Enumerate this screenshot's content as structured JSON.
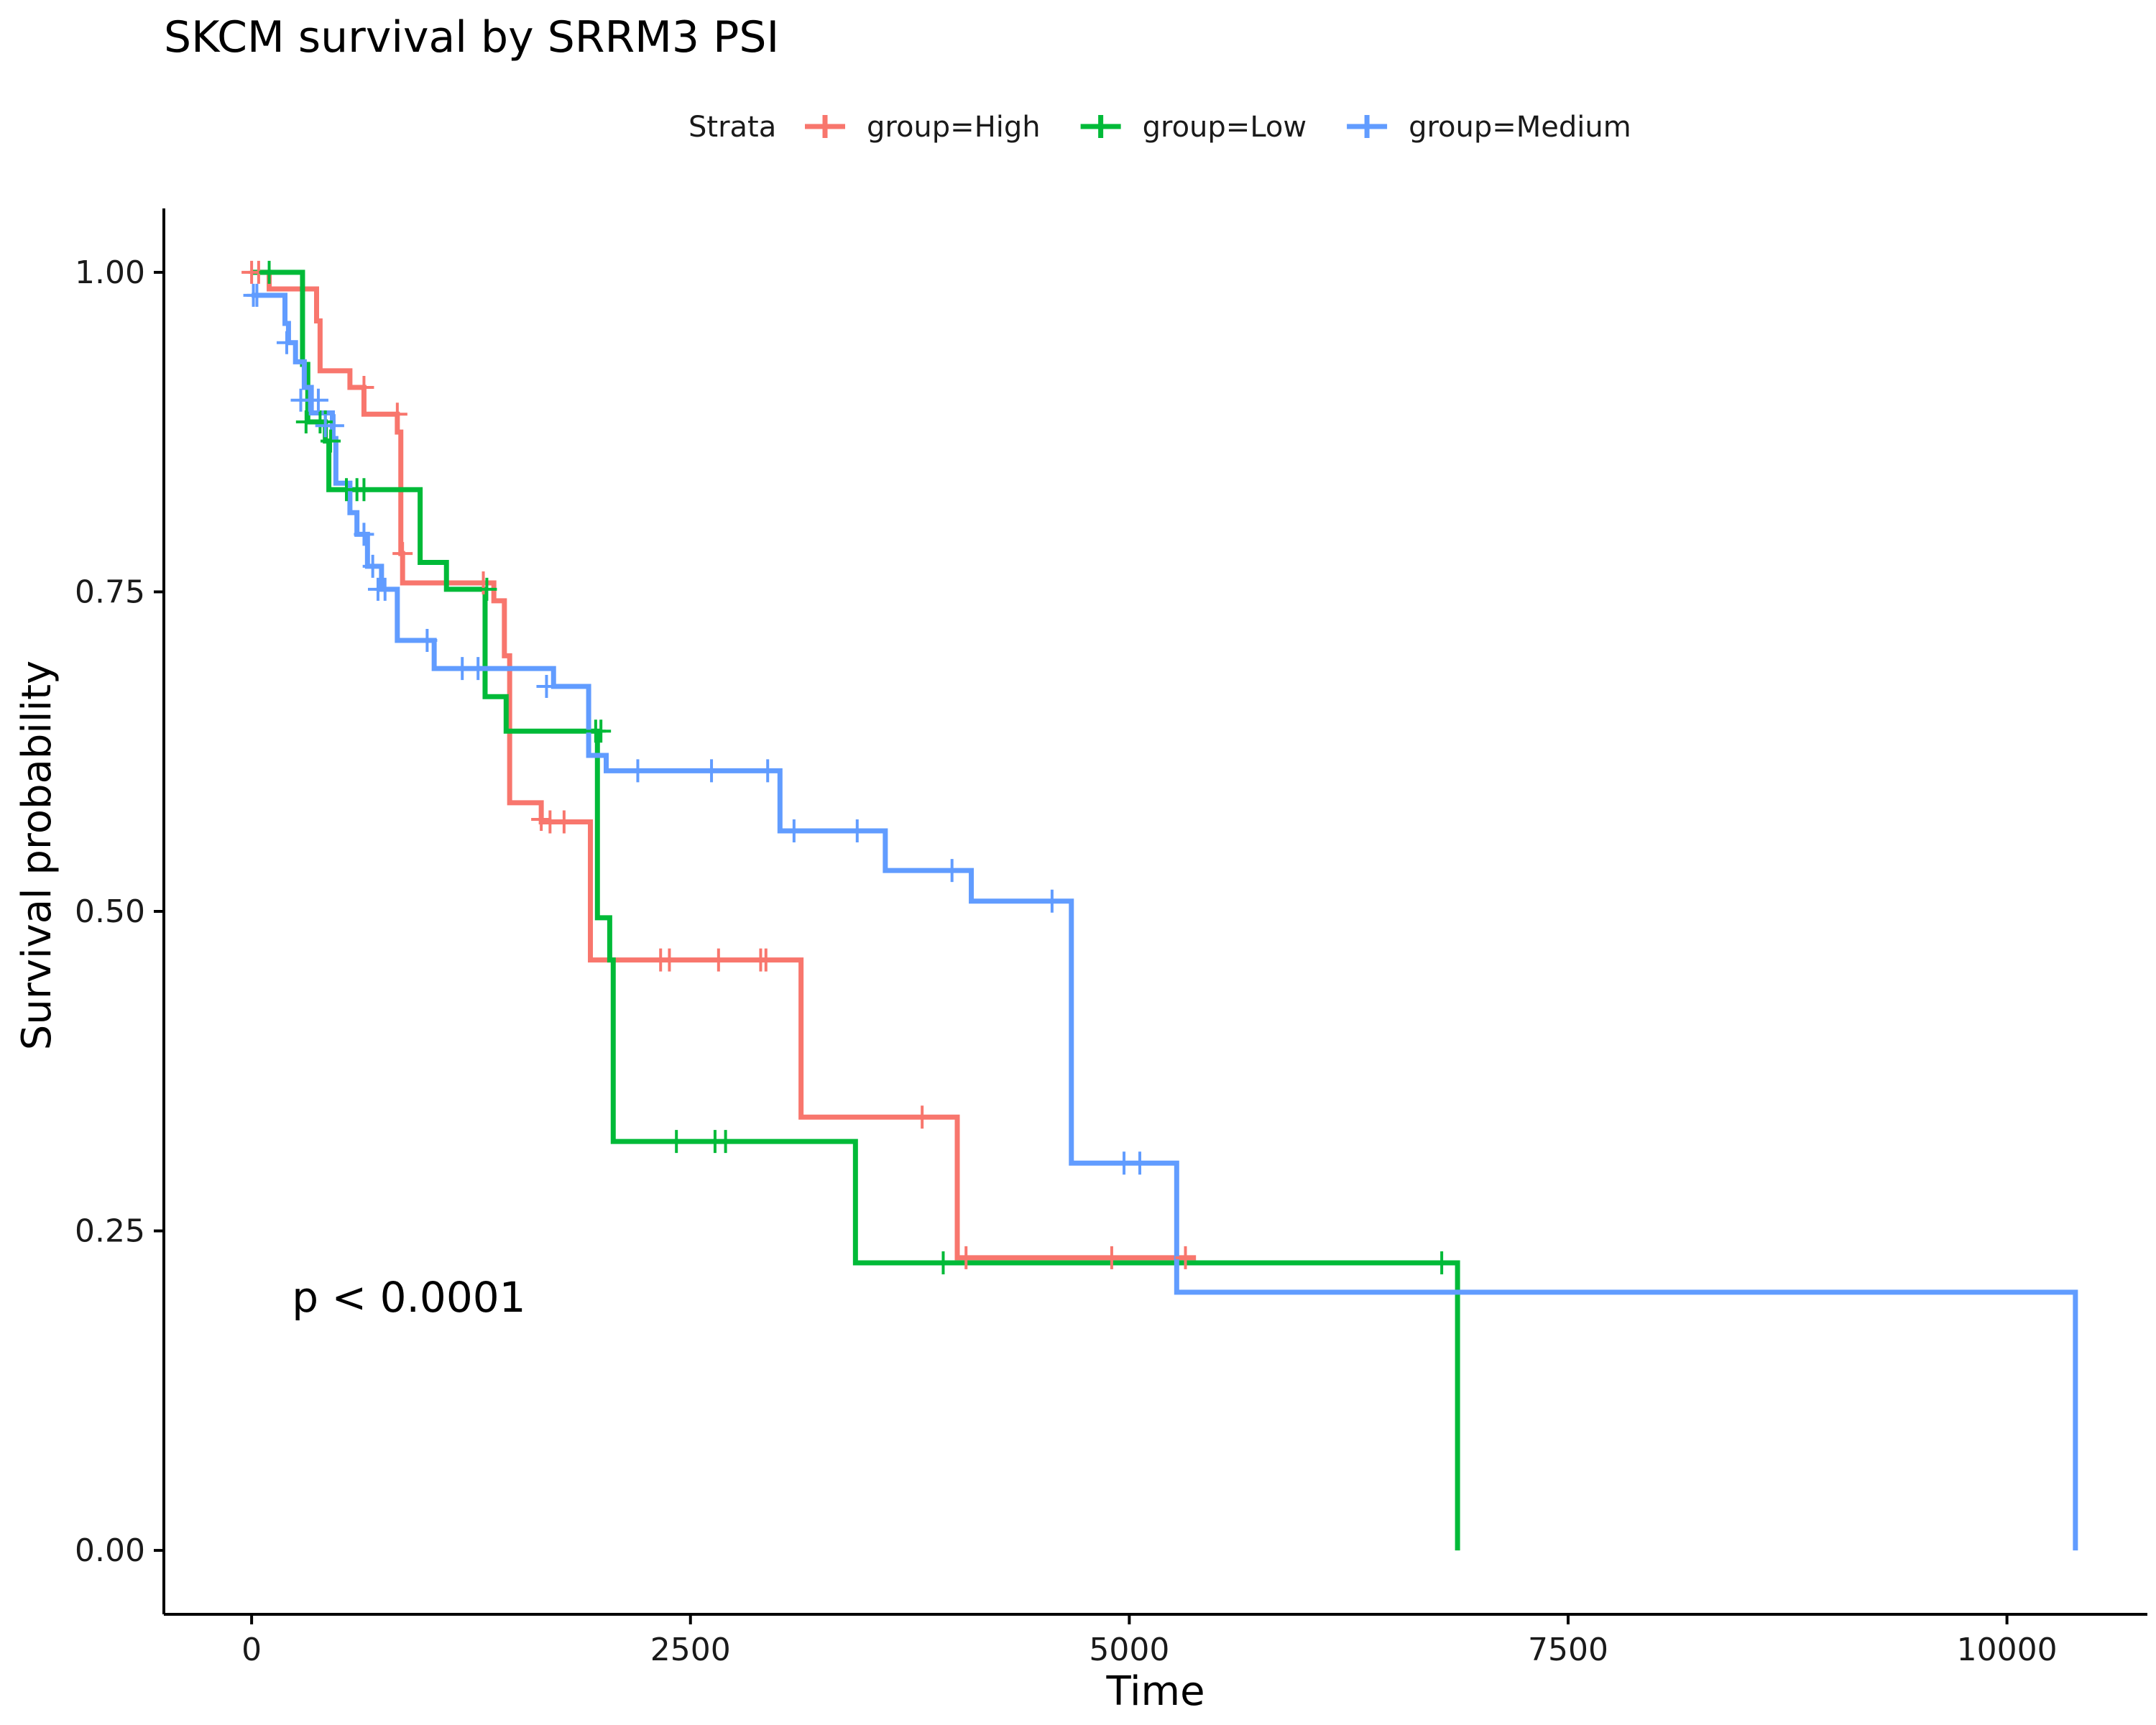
{
  "chart_data": {
    "type": "line",
    "title": "SKCM survival by SRRM3 PSI",
    "xlabel": "Time",
    "ylabel": "Survival probability",
    "xlim": [
      -500,
      10800
    ],
    "ylim": [
      -0.05,
      1.05
    ],
    "x_ticks": [
      0,
      2500,
      5000,
      7500,
      10000
    ],
    "x_tick_labels": [
      "0",
      "2500",
      "5000",
      "7500",
      "10000"
    ],
    "y_ticks": [
      0,
      0.25,
      0.5,
      0.75,
      1
    ],
    "y_tick_labels": [
      "0.00",
      "0.25",
      "0.50",
      "0.75",
      "1.00"
    ],
    "grid": false,
    "legend": {
      "title": "Strata",
      "position": "top"
    },
    "annotation": "p < 0.0001",
    "annotation_position": {
      "x": 230,
      "y": 0.198
    },
    "series": [
      {
        "name": "group=High",
        "color": "#F8766D",
        "steps": [
          [
            0,
            1.0
          ],
          [
            100,
            0.987
          ],
          [
            370,
            0.962
          ],
          [
            390,
            0.923
          ],
          [
            560,
            0.91
          ],
          [
            640,
            0.889
          ],
          [
            830,
            0.875
          ],
          [
            850,
            0.78
          ],
          [
            860,
            0.757
          ],
          [
            1380,
            0.743
          ],
          [
            1440,
            0.7
          ],
          [
            1470,
            0.585
          ],
          [
            1650,
            0.57
          ],
          [
            1930,
            0.462
          ],
          [
            3130,
            0.339
          ],
          [
            4020,
            0.229
          ],
          [
            5380,
            0.229
          ]
        ],
        "censor": [
          [
            0,
            1.0
          ],
          [
            40,
            1.0
          ],
          [
            640,
            0.91
          ],
          [
            830,
            0.889
          ],
          [
            860,
            0.78
          ],
          [
            1320,
            0.757
          ],
          [
            1650,
            0.572
          ],
          [
            1700,
            0.57
          ],
          [
            1780,
            0.57
          ],
          [
            2330,
            0.462
          ],
          [
            2380,
            0.462
          ],
          [
            2660,
            0.462
          ],
          [
            2900,
            0.462
          ],
          [
            2930,
            0.462
          ],
          [
            3820,
            0.339
          ],
          [
            4070,
            0.229
          ],
          [
            4900,
            0.229
          ],
          [
            5320,
            0.229
          ]
        ]
      },
      {
        "name": "group=Low",
        "color": "#00BA38",
        "steps": [
          [
            0,
            1.0
          ],
          [
            290,
            0.928
          ],
          [
            320,
            0.883
          ],
          [
            420,
            0.868
          ],
          [
            440,
            0.83
          ],
          [
            960,
            0.773
          ],
          [
            1110,
            0.752
          ],
          [
            1330,
            0.668
          ],
          [
            1450,
            0.641
          ],
          [
            1970,
            0.495
          ],
          [
            2040,
            0.462
          ],
          [
            2060,
            0.32
          ],
          [
            3440,
            0.225
          ],
          [
            6870,
            0.225
          ],
          [
            6870,
            0.0
          ]
        ],
        "censor": [
          [
            100,
            1.0
          ],
          [
            310,
            0.883
          ],
          [
            390,
            0.883
          ],
          [
            420,
            0.883
          ],
          [
            450,
            0.868
          ],
          [
            540,
            0.83
          ],
          [
            600,
            0.83
          ],
          [
            640,
            0.83
          ],
          [
            1340,
            0.752
          ],
          [
            1960,
            0.641
          ],
          [
            1990,
            0.641
          ],
          [
            2420,
            0.32
          ],
          [
            2640,
            0.32
          ],
          [
            2700,
            0.32
          ],
          [
            3940,
            0.225
          ],
          [
            6780,
            0.225
          ]
        ]
      },
      {
        "name": "group=Medium",
        "color": "#619CFF",
        "steps": [
          [
            0,
            0.982
          ],
          [
            190,
            0.96
          ],
          [
            210,
            0.945
          ],
          [
            250,
            0.93
          ],
          [
            300,
            0.91
          ],
          [
            340,
            0.89
          ],
          [
            460,
            0.87
          ],
          [
            480,
            0.835
          ],
          [
            560,
            0.812
          ],
          [
            600,
            0.795
          ],
          [
            660,
            0.77
          ],
          [
            740,
            0.752
          ],
          [
            830,
            0.712
          ],
          [
            1040,
            0.69
          ],
          [
            1720,
            0.676
          ],
          [
            1920,
            0.622
          ],
          [
            2020,
            0.61
          ],
          [
            3010,
            0.563
          ],
          [
            3610,
            0.532
          ],
          [
            4100,
            0.508
          ],
          [
            4670,
            0.303
          ],
          [
            5270,
            0.202
          ],
          [
            10390,
            0.202
          ],
          [
            10390,
            0.0
          ]
        ],
        "censor": [
          [
            10,
            0.982
          ],
          [
            30,
            0.982
          ],
          [
            200,
            0.945
          ],
          [
            280,
            0.9
          ],
          [
            330,
            0.9
          ],
          [
            380,
            0.9
          ],
          [
            420,
            0.88
          ],
          [
            470,
            0.88
          ],
          [
            640,
            0.795
          ],
          [
            690,
            0.77
          ],
          [
            720,
            0.752
          ],
          [
            760,
            0.752
          ],
          [
            1000,
            0.712
          ],
          [
            1200,
            0.69
          ],
          [
            1290,
            0.69
          ],
          [
            1680,
            0.676
          ],
          [
            2200,
            0.61
          ],
          [
            2620,
            0.61
          ],
          [
            2940,
            0.61
          ],
          [
            3090,
            0.563
          ],
          [
            3450,
            0.563
          ],
          [
            3990,
            0.532
          ],
          [
            4560,
            0.508
          ],
          [
            4970,
            0.303
          ],
          [
            5060,
            0.303
          ]
        ]
      }
    ]
  }
}
